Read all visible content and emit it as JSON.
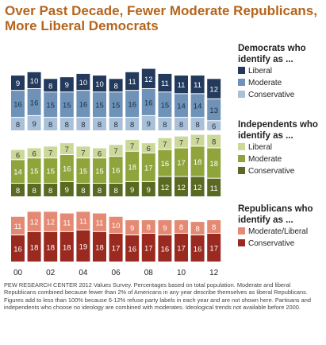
{
  "title": "Over Past Decade, Fewer Moderate Republicans, More Liberal Democrats",
  "footnote": {
    "source": "PEW RESEARCH CENTER 2012 Values Survey.",
    "text": "Percentages based on total population. Moderate and liberal Republicans combined because fewer than 2% of Americans in any year describe themselves as liberal Republicans. Figures add to less than 100% because 6-12% refuse party labels in each year and are not shown here. Partisans and independents who choose no ideology are combined with moderates. Ideological trends not available before 2000."
  },
  "colors": {
    "dem_liberal": "#233a5c",
    "dem_moderate": "#6f93b8",
    "dem_conservative": "#a9c0d7",
    "ind_liberal": "#ccd89a",
    "ind_moderate": "#8fa53c",
    "ind_conservative": "#5a6a22",
    "rep_modlib": "#e48a74",
    "rep_conservative": "#9a2a20",
    "title": "#b5651d"
  },
  "chart_data": {
    "type": "bar",
    "stacked": true,
    "years": [
      2000,
      2001,
      2002,
      2003,
      2004,
      2005,
      2006,
      2007,
      2008,
      2009,
      2010,
      2011,
      2012
    ],
    "x_tick_labels": [
      "00",
      "02",
      "04",
      "06",
      "08",
      "10",
      "12"
    ],
    "groups": [
      {
        "name": "Democrats who identify as ...",
        "series": [
          {
            "name": "Liberal",
            "values": [
              9,
              10,
              8,
              9,
              10,
              10,
              8,
              11,
              12,
              11,
              11,
              11,
              12
            ]
          },
          {
            "name": "Moderate",
            "values": [
              16,
              16,
              15,
              15,
              16,
              15,
              15,
              16,
              16,
              15,
              14,
              14,
              13
            ]
          },
          {
            "name": "Conservative",
            "values": [
              8,
              9,
              8,
              8,
              8,
              8,
              8,
              8,
              9,
              8,
              8,
              8,
              6
            ]
          }
        ]
      },
      {
        "name": "Independents who identify as ...",
        "series": [
          {
            "name": "Liberal",
            "values": [
              6,
              6,
              7,
              7,
              7,
              6,
              7,
              7,
              6,
              7,
              7,
              7,
              8
            ]
          },
          {
            "name": "Moderate",
            "values": [
              14,
              15,
              15,
              16,
              15,
              15,
              16,
              18,
              17,
              16,
              17,
              18,
              18
            ]
          },
          {
            "name": "Conservative",
            "values": [
              8,
              8,
              8,
              9,
              8,
              8,
              8,
              9,
              9,
              12,
              12,
              12,
              11
            ]
          }
        ]
      },
      {
        "name": "Republicans who identify as ...",
        "series": [
          {
            "name": "Moderate/Liberal",
            "values": [
              11,
              12,
              12,
              11,
              11,
              11,
              10,
              9,
              8,
              9,
              8,
              8,
              8
            ]
          },
          {
            "name": "Conservative",
            "values": [
              16,
              18,
              18,
              18,
              19,
              18,
              17,
              16,
              17,
              16,
              17,
              16,
              17
            ]
          }
        ]
      }
    ]
  }
}
